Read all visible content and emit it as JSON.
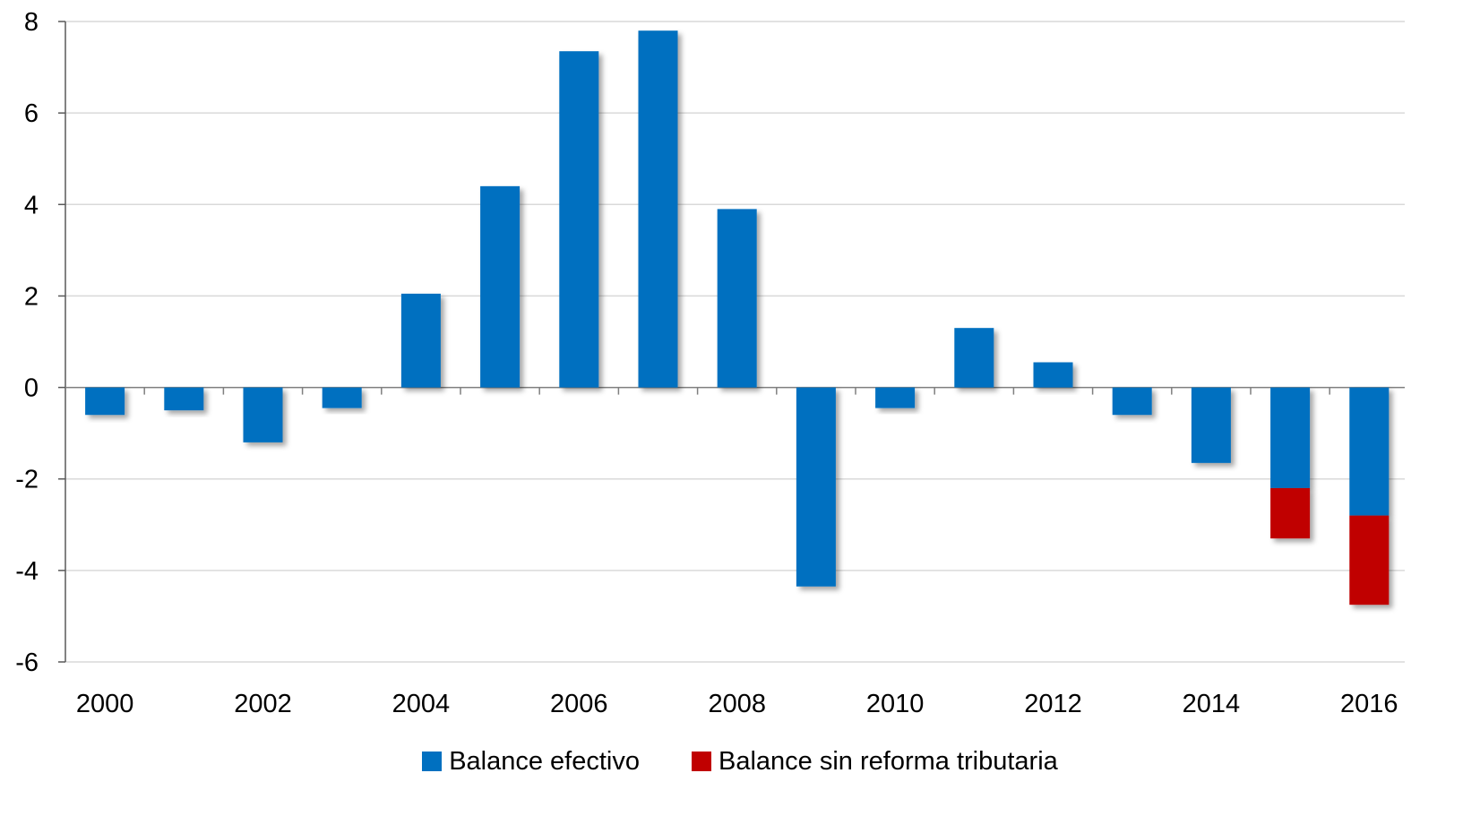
{
  "chart_data": {
    "type": "bar",
    "stacked": true,
    "title": "",
    "xlabel": "",
    "ylabel": "",
    "ylim": [
      -6,
      8
    ],
    "yticks": [
      -6,
      -4,
      -2,
      0,
      2,
      4,
      6,
      8
    ],
    "x": [
      2000,
      2001,
      2002,
      2003,
      2004,
      2005,
      2006,
      2007,
      2008,
      2009,
      2010,
      2011,
      2012,
      2013,
      2014,
      2015,
      2016
    ],
    "xtick_labels": [
      "2000",
      "2002",
      "2004",
      "2006",
      "2008",
      "2010",
      "2012",
      "2014",
      "2016"
    ],
    "grid": true,
    "legend_position": "bottom",
    "series": [
      {
        "name": "Balance efectivo",
        "color": "#0070C0",
        "values": [
          -0.6,
          -0.5,
          -1.2,
          -0.45,
          2.05,
          4.4,
          7.35,
          7.8,
          3.9,
          -4.35,
          -0.45,
          1.3,
          0.55,
          -0.6,
          -1.65,
          -2.2,
          -2.8
        ]
      },
      {
        "name": "Balance sin reforma tributaria",
        "color": "#C00000",
        "values": [
          0,
          0,
          0,
          0,
          0,
          0,
          0,
          0,
          0,
          0,
          0,
          0,
          0,
          0,
          0,
          -1.1,
          -1.95
        ]
      }
    ]
  }
}
